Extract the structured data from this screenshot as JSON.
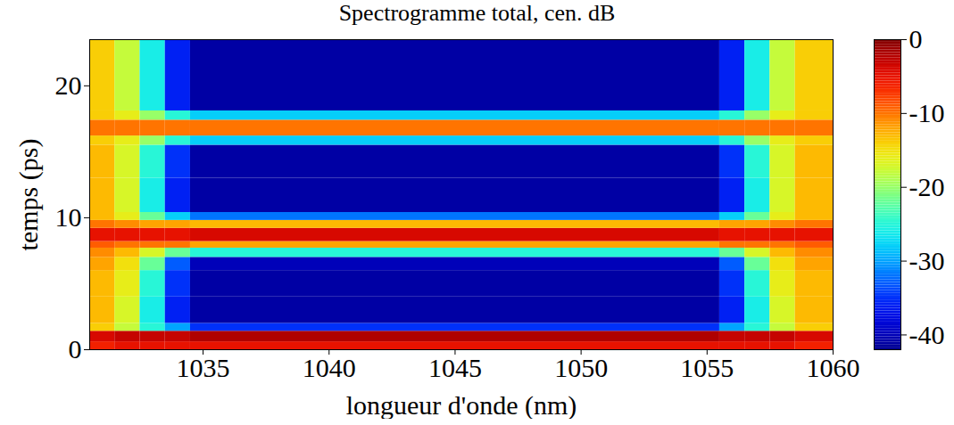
{
  "chart_data": {
    "type": "heatmap",
    "title": "Spectrogramme total, cen. dB",
    "x_label": "longueur d'onde (nm)",
    "y_label": "temps (ps)",
    "xlim": [
      1030.5,
      1060
    ],
    "xticks": [
      1035,
      1040,
      1045,
      1050,
      1055,
      1060
    ],
    "ylim": [
      0,
      23.5
    ],
    "yticks": [
      0,
      10,
      20
    ],
    "x_edges": [
      1030.5,
      1031.5,
      1032.5,
      1033.5,
      1034.5,
      1055.5,
      1056.5,
      1057.5,
      1058.5,
      1060
    ],
    "y_edges": [
      0,
      0.6,
      1.4,
      2,
      4,
      6,
      7,
      7.7,
      8.2,
      9.2,
      9.8,
      10.4,
      13,
      15.5,
      16.2,
      17.4,
      18.1,
      23.5
    ],
    "cells": [
      [
        -6,
        -5,
        -5,
        -5,
        -5,
        -5,
        -5,
        -5,
        -6
      ],
      [
        -4,
        -3,
        -3,
        -3,
        -2,
        -3,
        -3,
        -3,
        -4
      ],
      [
        -14,
        -18,
        -25,
        -30,
        -35,
        -30,
        -25,
        -18,
        -14
      ],
      [
        -13,
        -17,
        -26,
        -36,
        -41,
        -36,
        -26,
        -17,
        -13
      ],
      [
        -13,
        -16,
        -25,
        -35,
        -41,
        -35,
        -25,
        -16,
        -13
      ],
      [
        -12,
        -15,
        -22,
        -33,
        -40,
        -33,
        -22,
        -15,
        -12
      ],
      [
        -11,
        -13,
        -17,
        -22,
        -25,
        -22,
        -17,
        -13,
        -11
      ],
      [
        -9,
        -10,
        -10,
        -10,
        -12,
        -10,
        -10,
        -10,
        -9
      ],
      [
        -5,
        -5,
        -5,
        -5,
        -4,
        -5,
        -5,
        -5,
        -5
      ],
      [
        -10,
        -11,
        -12,
        -12,
        -13,
        -12,
        -12,
        -11,
        -10
      ],
      [
        -13,
        -16,
        -22,
        -28,
        -32,
        -28,
        -22,
        -16,
        -13
      ],
      [
        -13,
        -17,
        -26,
        -36,
        -41,
        -36,
        -26,
        -17,
        -13
      ],
      [
        -13,
        -17,
        -25,
        -35,
        -41,
        -35,
        -25,
        -17,
        -13
      ],
      [
        -14,
        -16,
        -20,
        -25,
        -28,
        -25,
        -20,
        -16,
        -14
      ],
      [
        -10,
        -10,
        -10,
        -10,
        -10,
        -10,
        -10,
        -10,
        -10
      ],
      [
        -14,
        -16,
        -20,
        -25,
        -28,
        -25,
        -20,
        -16,
        -14
      ],
      [
        -14,
        -18,
        -26,
        -36,
        -41,
        -36,
        -26,
        -18,
        -14
      ]
    ],
    "colorbar": {
      "range": [
        -42,
        0
      ],
      "ticks": [
        0,
        -10,
        -20,
        -30,
        -40
      ]
    }
  }
}
